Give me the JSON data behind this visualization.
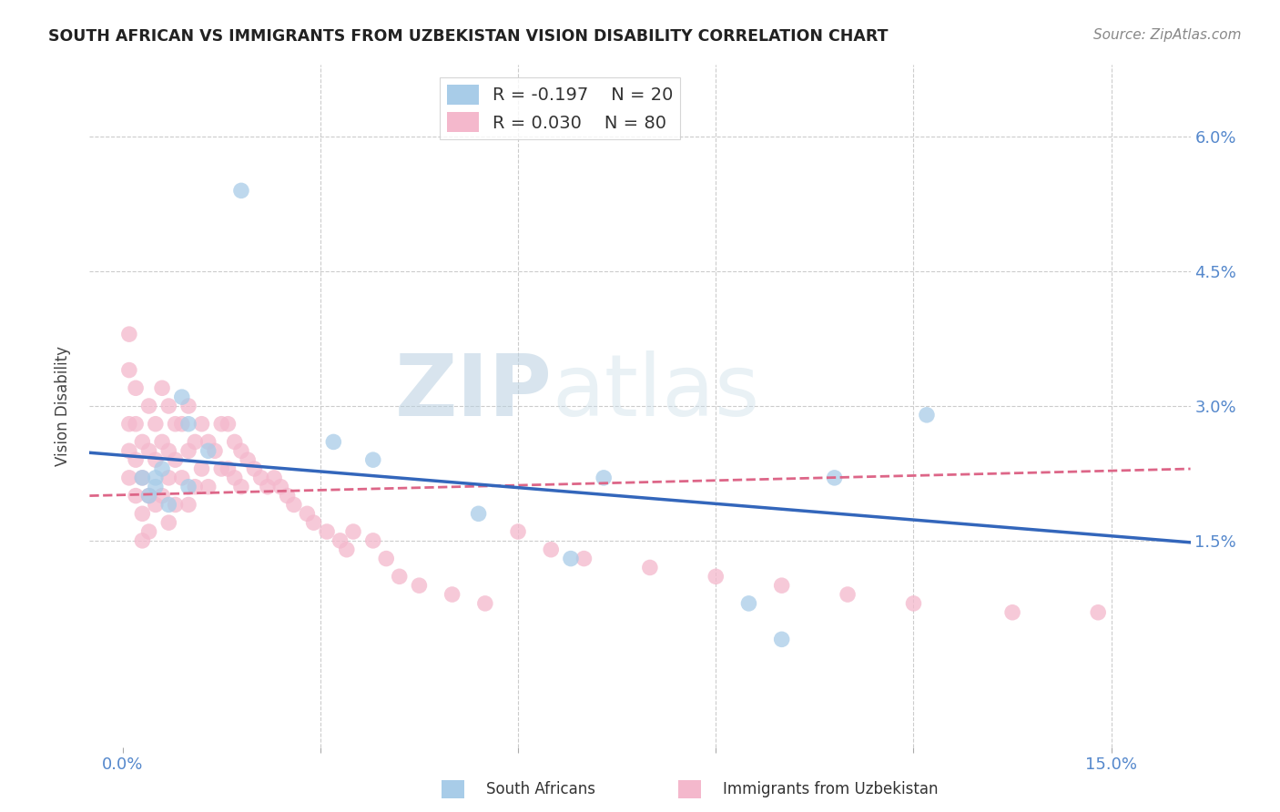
{
  "title": "SOUTH AFRICAN VS IMMIGRANTS FROM UZBEKISTAN VISION DISABILITY CORRELATION CHART",
  "source": "Source: ZipAtlas.com",
  "xlim": [
    -0.005,
    0.162
  ],
  "ylim": [
    -0.008,
    0.068
  ],
  "ylabel": "Vision Disability",
  "legend_entry1_r": "R = -0.197",
  "legend_entry1_n": "N = 20",
  "legend_entry2_r": "R = 0.030",
  "legend_entry2_n": "N = 80",
  "color_blue": "#a8cce8",
  "color_pink": "#f4b8cc",
  "line_blue": "#3366bb",
  "line_pink": "#dd6688",
  "watermark_zip": "ZIP",
  "watermark_atlas": "atlas",
  "grid_color": "#cccccc",
  "bg_color": "#ffffff",
  "south_africans_x": [
    0.018,
    0.009,
    0.01,
    0.013,
    0.006,
    0.005,
    0.003,
    0.005,
    0.004,
    0.007,
    0.01,
    0.032,
    0.038,
    0.054,
    0.073,
    0.068,
    0.095,
    0.1,
    0.108,
    0.122
  ],
  "south_africans_y": [
    0.054,
    0.031,
    0.028,
    0.025,
    0.023,
    0.022,
    0.022,
    0.021,
    0.02,
    0.019,
    0.021,
    0.026,
    0.024,
    0.018,
    0.022,
    0.013,
    0.008,
    0.004,
    0.022,
    0.029
  ],
  "immigrants_x": [
    0.001,
    0.001,
    0.001,
    0.001,
    0.001,
    0.002,
    0.002,
    0.002,
    0.002,
    0.003,
    0.003,
    0.003,
    0.003,
    0.004,
    0.004,
    0.004,
    0.004,
    0.005,
    0.005,
    0.005,
    0.006,
    0.006,
    0.006,
    0.007,
    0.007,
    0.007,
    0.007,
    0.008,
    0.008,
    0.008,
    0.009,
    0.009,
    0.01,
    0.01,
    0.01,
    0.011,
    0.011,
    0.012,
    0.012,
    0.013,
    0.013,
    0.014,
    0.015,
    0.015,
    0.016,
    0.016,
    0.017,
    0.017,
    0.018,
    0.018,
    0.019,
    0.02,
    0.021,
    0.022,
    0.023,
    0.024,
    0.025,
    0.026,
    0.028,
    0.029,
    0.031,
    0.033,
    0.034,
    0.035,
    0.038,
    0.04,
    0.042,
    0.045,
    0.05,
    0.055,
    0.06,
    0.065,
    0.07,
    0.08,
    0.09,
    0.1,
    0.11,
    0.12,
    0.135,
    0.148
  ],
  "immigrants_y": [
    0.038,
    0.034,
    0.028,
    0.025,
    0.022,
    0.032,
    0.028,
    0.024,
    0.02,
    0.026,
    0.022,
    0.018,
    0.015,
    0.03,
    0.025,
    0.02,
    0.016,
    0.028,
    0.024,
    0.019,
    0.032,
    0.026,
    0.02,
    0.03,
    0.025,
    0.022,
    0.017,
    0.028,
    0.024,
    0.019,
    0.028,
    0.022,
    0.03,
    0.025,
    0.019,
    0.026,
    0.021,
    0.028,
    0.023,
    0.026,
    0.021,
    0.025,
    0.028,
    0.023,
    0.028,
    0.023,
    0.026,
    0.022,
    0.025,
    0.021,
    0.024,
    0.023,
    0.022,
    0.021,
    0.022,
    0.021,
    0.02,
    0.019,
    0.018,
    0.017,
    0.016,
    0.015,
    0.014,
    0.016,
    0.015,
    0.013,
    0.011,
    0.01,
    0.009,
    0.008,
    0.016,
    0.014,
    0.013,
    0.012,
    0.011,
    0.01,
    0.009,
    0.008,
    0.007,
    0.007
  ],
  "line_blue_start_y": 0.0248,
  "line_blue_end_y": 0.0148,
  "line_pink_start_y": 0.02,
  "line_pink_end_y": 0.023
}
